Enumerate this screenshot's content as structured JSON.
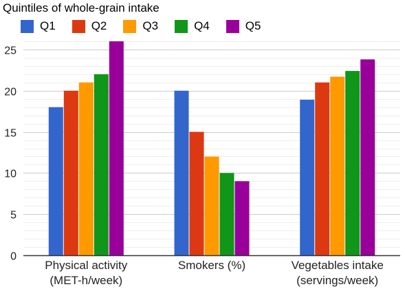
{
  "chart_data": {
    "type": "bar",
    "legend_title": "Quintiles of whole-grain intake",
    "categories": [
      [
        "Physical activity",
        "(MET-h/week)"
      ],
      [
        "Smokers (%)"
      ],
      [
        "Vegetables intake",
        "(servings/week)"
      ]
    ],
    "series": [
      {
        "name": "Q1",
        "color": "#3366cc",
        "values": [
          18,
          20,
          18.9
        ]
      },
      {
        "name": "Q2",
        "color": "#dc3912",
        "values": [
          20,
          15,
          21
        ]
      },
      {
        "name": "Q3",
        "color": "#ff9900",
        "values": [
          21,
          12,
          21.7
        ]
      },
      {
        "name": "Q4",
        "color": "#109618",
        "values": [
          22,
          10,
          22.4
        ]
      },
      {
        "name": "Q5",
        "color": "#990099",
        "values": [
          26,
          9,
          23.8
        ]
      }
    ],
    "ylim": [
      0,
      26
    ],
    "yticks": [
      0,
      5,
      10,
      15,
      20,
      25
    ],
    "grid": true,
    "legend_position": "top-left"
  }
}
